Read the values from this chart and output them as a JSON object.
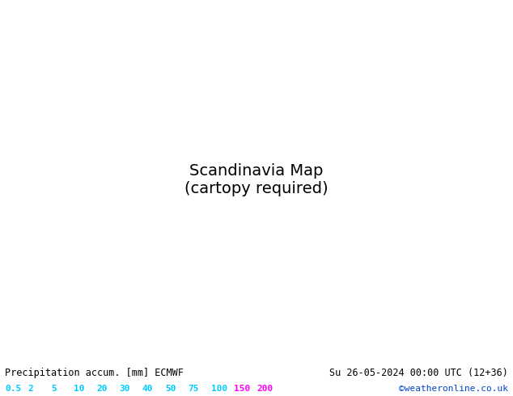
{
  "title_left": "Precipitation accum. [mm] ECMWF",
  "title_right": "Su 26-05-2024 00:00 UTC (12+36)",
  "credit": "©weatheronline.co.uk",
  "colorbar_values": [
    "0.5",
    "2",
    "5",
    "10",
    "20",
    "30",
    "40",
    "50",
    "75",
    "100",
    "150",
    "200"
  ],
  "colorbar_colors_hex": [
    "#c8f0ff",
    "#96d8f0",
    "#64c8e6",
    "#32b4dc",
    "#00a0d2",
    "#0082be",
    "#0064aa",
    "#004696",
    "#002882",
    "#6e00c8",
    "#b400b4",
    "#ff00ff"
  ],
  "label_colors": [
    "#00ccff",
    "#00ccff",
    "#00ccff",
    "#00ccff",
    "#00ccff",
    "#00ccff",
    "#00ccff",
    "#00ccff",
    "#00ccff",
    "#00ccff",
    "#ff00ff",
    "#ff00ff"
  ],
  "sea_color": "#a0c8e8",
  "land_color": "#c8dca0",
  "norway_color": "#b8d890",
  "bottom_bg": "#d8f0ff",
  "text_color": "#000000",
  "credit_color": "#0044cc",
  "figsize": [
    6.34,
    4.9
  ],
  "dpi": 100,
  "extent": [
    0,
    40,
    52,
    75
  ]
}
